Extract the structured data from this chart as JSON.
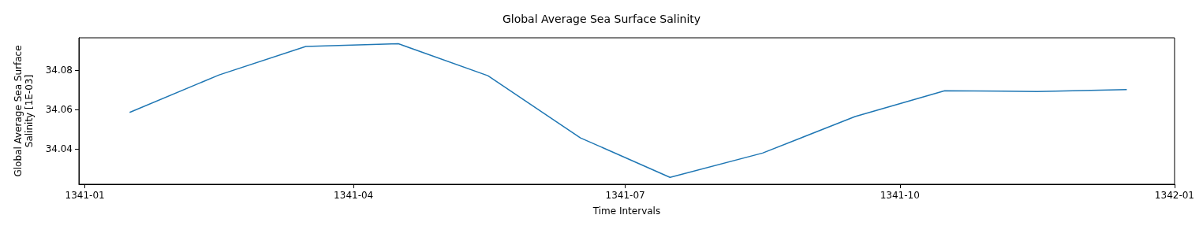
{
  "chart_data": {
    "type": "line",
    "title": "Global Average Sea Surface Salinity",
    "xlabel": "Time Intervals",
    "ylabel": "Global Average Sea Surface\nSalinity [1E-03]",
    "x": [
      "1341-01-16",
      "1341-02-15",
      "1341-03-16",
      "1341-04-16",
      "1341-05-16",
      "1341-06-16",
      "1341-07-16",
      "1341-08-16",
      "1341-09-16",
      "1341-10-16",
      "1341-11-16",
      "1341-12-16"
    ],
    "series": [
      {
        "color": "#1f77b4",
        "values": [
          34.0585,
          34.0775,
          34.0919,
          34.0933,
          34.0771,
          34.0456,
          34.0256,
          34.0379,
          34.0564,
          34.0695,
          34.0691,
          34.0701
        ]
      }
    ],
    "xlim": [
      "1340-12-30",
      "1342-01-01"
    ],
    "xticks": [
      "1341-01",
      "1341-04",
      "1341-07",
      "1341-10",
      "1342-01"
    ],
    "ylim": [
      34.0221,
      34.0963
    ],
    "yticks": [
      34.04,
      34.06,
      34.08
    ],
    "grid": false
  }
}
